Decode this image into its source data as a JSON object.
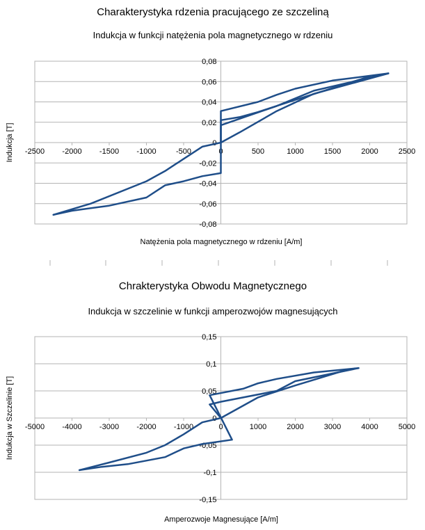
{
  "chart_data": [
    {
      "type": "line",
      "title": "Charakterystyka rdzenia pracującego ze szczeliną",
      "subtitle": "Indukcja w funkcji natężenia pola magnetycznego w rdzeniu",
      "xlabel": "Natężenia pola magnetycznego w rdzeniu [A/m]",
      "ylabel": "Indukcja [T]",
      "xlim": [
        -2500,
        2500
      ],
      "ylim": [
        -0.08,
        0.08
      ],
      "xticks": [
        -2500,
        -2000,
        -1500,
        -1000,
        -500,
        0,
        500,
        1000,
        1500,
        2000,
        2500
      ],
      "xtick_labels": [
        "-2500",
        "-2000",
        "-1500",
        "-1000",
        "-500",
        "0",
        "500",
        "1000",
        "1500",
        "2000",
        "2500"
      ],
      "yticks": [
        -0.08,
        -0.06,
        -0.04,
        -0.02,
        0,
        0.02,
        0.04,
        0.06,
        0.08
      ],
      "ytick_labels": [
        "-0,08",
        "-0,06",
        "-0,04",
        "-0,02",
        "0",
        "0,02",
        "0,04",
        "0,06",
        "0,08"
      ],
      "grid": true,
      "color": "#1f4e89",
      "series": [
        {
          "x": [
            0,
            0,
            750,
            1250,
            2250
          ],
          "y": [
            0,
            0.017,
            0.036,
            0.051,
            0.068
          ]
        },
        {
          "x": [
            2250,
            1500,
            1000,
            750,
            500,
            0,
            0,
            0,
            -250,
            -500,
            -750,
            -1000,
            -1500,
            -2000,
            -2250
          ],
          "y": [
            0.068,
            0.061,
            0.053,
            0.047,
            0.04,
            0.031,
            0,
            -0.03,
            -0.033,
            -0.038,
            -0.042,
            -0.054,
            -0.062,
            -0.067,
            -0.071
          ]
        },
        {
          "x": [
            -2250,
            -1750,
            -1000,
            -750,
            -500,
            -250,
            0,
            0,
            250,
            500,
            1000,
            2000
          ],
          "y": [
            -0.071,
            -0.06,
            -0.038,
            -0.028,
            -0.016,
            -0.004,
            0,
            0.022,
            0.025,
            0.03,
            0.042,
            0.065
          ]
        },
        {
          "x": [
            0,
            250,
            750,
            1250,
            2250
          ],
          "y": [
            0,
            0.01,
            0.031,
            0.048,
            0.068
          ]
        }
      ]
    },
    {
      "type": "line",
      "title": "Chrakterystyka Obwodu Magnetycznego",
      "subtitle": "Indukcja w szczelinie w funkcji amperozwojów magnesujących",
      "xlabel": "Amperozwoje Magnesujące [A/m]",
      "ylabel": "Indukcja w Szczelinie [T]",
      "xlim": [
        -5000,
        5000
      ],
      "ylim": [
        -0.15,
        0.15
      ],
      "xticks": [
        -5000,
        -4000,
        -3000,
        -2000,
        -1000,
        0,
        1000,
        2000,
        3000,
        4000,
        5000
      ],
      "xtick_labels": [
        "-5000",
        "-4000",
        "-3000",
        "-2000",
        "-1000",
        "0",
        "1000",
        "2000",
        "3000",
        "4000",
        "5000"
      ],
      "yticks": [
        -0.15,
        -0.1,
        -0.05,
        0,
        0.05,
        0.1,
        0.15
      ],
      "ytick_labels": [
        "-0,15",
        "-0,1",
        "-0,05",
        "0",
        "0,05",
        "0,1",
        "0,15"
      ],
      "grid": true,
      "color": "#1f4e89",
      "series": [
        {
          "x": [
            0,
            -300,
            0,
            1500,
            2000,
            3700
          ],
          "y": [
            0,
            0.025,
            0.03,
            0.05,
            0.068,
            0.092
          ]
        },
        {
          "x": [
            3700,
            2500,
            1500,
            1000,
            600,
            -300,
            300,
            -500,
            -1000,
            -1500,
            -2500,
            -3200,
            -3800
          ],
          "y": [
            0.092,
            0.084,
            0.072,
            0.064,
            0.054,
            0.042,
            -0.04,
            -0.048,
            -0.056,
            -0.072,
            -0.085,
            -0.09,
            -0.096
          ]
        },
        {
          "x": [
            -3800,
            -3000,
            -2000,
            -1500,
            -1000,
            -500,
            0,
            1000,
            2000,
            3300
          ],
          "y": [
            -0.096,
            -0.082,
            -0.064,
            -0.05,
            -0.03,
            -0.008,
            0,
            0.038,
            0.06,
            0.087
          ]
        }
      ]
    }
  ]
}
